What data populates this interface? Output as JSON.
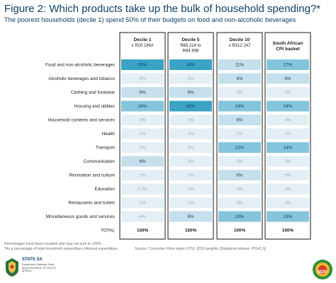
{
  "header": {
    "title": "Figure 2: Which products take up the bulk of household spending?*",
    "subtitle": "The poorest households (decile 1) spend 50% of their budgets on food and non-alcoholic beverages"
  },
  "chart_data": {
    "type": "table",
    "columns": [
      {
        "name": "Decile 1",
        "sub": "≤ R20 140#"
      },
      {
        "name": "Decile 5",
        "sub": "R65 214 to R84 698"
      },
      {
        "name": "Decile 10",
        "sub": "≥ R312 247"
      },
      {
        "name": "South African CPI basket",
        "sub": ""
      }
    ],
    "rows": [
      {
        "label": "Food and non-alcoholic beverages",
        "values": [
          "50%",
          "34%",
          "11%",
          "17%"
        ]
      },
      {
        "label": "Alcoholic beverages and tobacco",
        "values": [
          "4%",
          "5%",
          "6%",
          "6%"
        ]
      },
      {
        "label": "Clothing and footwear",
        "values": [
          "9%",
          "6%",
          "3%",
          "4%"
        ]
      },
      {
        "label": "Housing and utilities",
        "values": [
          "16%",
          "30%",
          "16%",
          "24%"
        ]
      },
      {
        "label": "Household contents and services",
        "values": [
          "3%",
          "3%",
          "6%",
          "4%"
        ]
      },
      {
        "label": "Health",
        "values": [
          "1%",
          "1%",
          "2%",
          "1%"
        ]
      },
      {
        "label": "Transport",
        "values": [
          "1%",
          "4%",
          "22%",
          "14%"
        ]
      },
      {
        "label": "Communication",
        "values": [
          "6%",
          "3%",
          "3%",
          "3%"
        ]
      },
      {
        "label": "Recreation and culture",
        "values": [
          "2%",
          "3%",
          "6%",
          "5%"
        ]
      },
      {
        "label": "Education",
        "values": [
          "0,3%",
          "1%",
          "3%",
          "3%"
        ]
      },
      {
        "label": "Restaurants and hotels",
        "values": [
          "1%",
          "1%",
          "3%",
          "3%"
        ]
      },
      {
        "label": "Miscellaneous goods and services",
        "values": [
          "4%",
          "6%",
          "20%",
          "15%"
        ]
      }
    ],
    "total": {
      "label": "TOTAL",
      "values": [
        "100%",
        "100%",
        "100%",
        "100%"
      ]
    },
    "colors": {
      "very_light": "#e3eef5",
      "light": "#c5dfec",
      "medium": "#84c5dc",
      "strong": "#3aa3c6",
      "text_light": "#9bb0bd",
      "text_dark": "#0d3f66"
    }
  },
  "footer": {
    "note1": "Percentages have been rounded and may not sum to 100%",
    "note2": "*As a percentage of total household expenditure   #Annual expenditure",
    "source": "Source: Consumer Price Index (CPI), 2019 weights (Statistical release: P0141.5)",
    "logo_abbrev": "STATS SA",
    "logo_dept": "Department: Statistics South Africa REPUBLIC OF SOUTH AFRICA",
    "ndp_text": "NDP"
  }
}
